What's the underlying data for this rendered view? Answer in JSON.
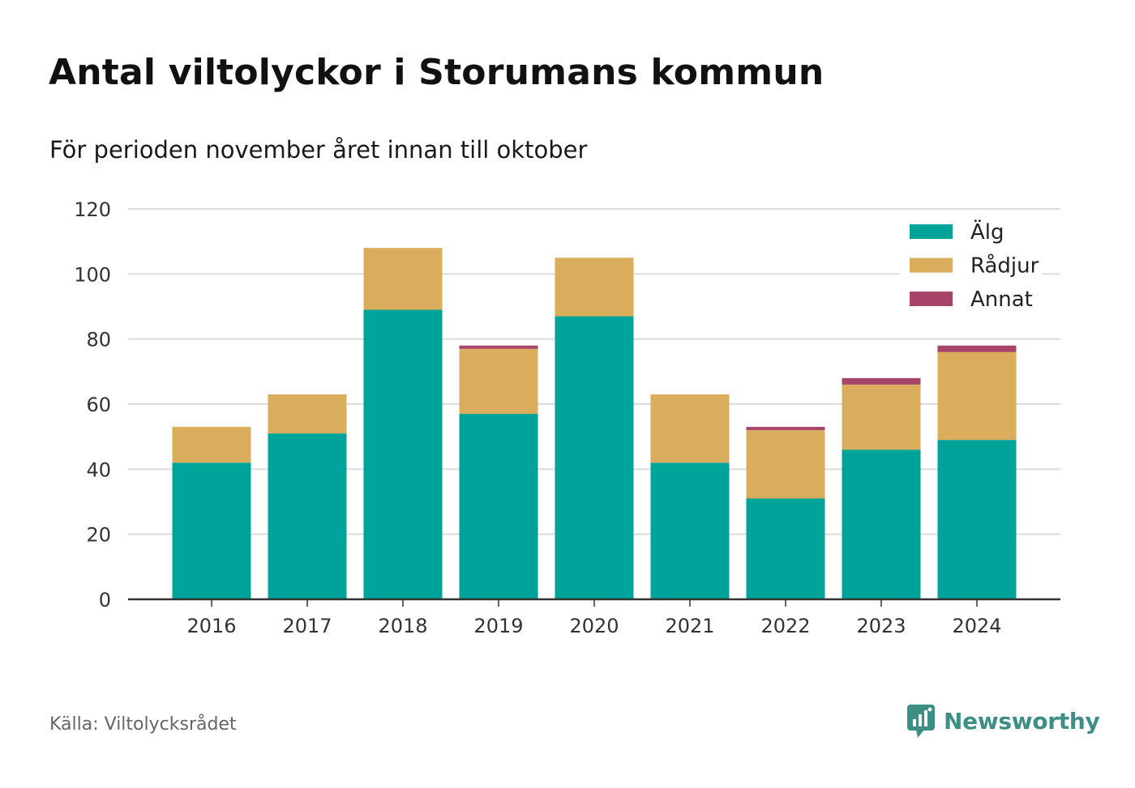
{
  "header": {
    "title": "Antal viltolyckor i Storumans kommun",
    "subtitle": "För perioden november året innan till oktober"
  },
  "footer": {
    "source": "Källa: Viltolycksrådet",
    "brand": "Newsworthy",
    "brand_color": "#3d8f86",
    "brand_icon": "bar-chart-speech-bubble-icon"
  },
  "chart_data": {
    "type": "bar",
    "stacked": true,
    "categories": [
      "2016",
      "2017",
      "2018",
      "2019",
      "2020",
      "2021",
      "2022",
      "2023",
      "2024"
    ],
    "series": [
      {
        "name": "Älg",
        "color": "#00a39a",
        "values": [
          42,
          51,
          89,
          57,
          87,
          42,
          31,
          46,
          49
        ]
      },
      {
        "name": "Rådjur",
        "color": "#d9ad5b",
        "values": [
          11,
          12,
          19,
          20,
          18,
          21,
          21,
          20,
          27
        ]
      },
      {
        "name": "Annat",
        "color": "#a8436a",
        "values": [
          0,
          0,
          0,
          1,
          0,
          0,
          1,
          2,
          2
        ]
      }
    ],
    "ylim": [
      0,
      120
    ],
    "yticks": [
      "0",
      "20",
      "40",
      "60",
      "80",
      "100",
      "120"
    ],
    "grid": true,
    "legend": "top-right",
    "xlabel": "",
    "ylabel": ""
  }
}
